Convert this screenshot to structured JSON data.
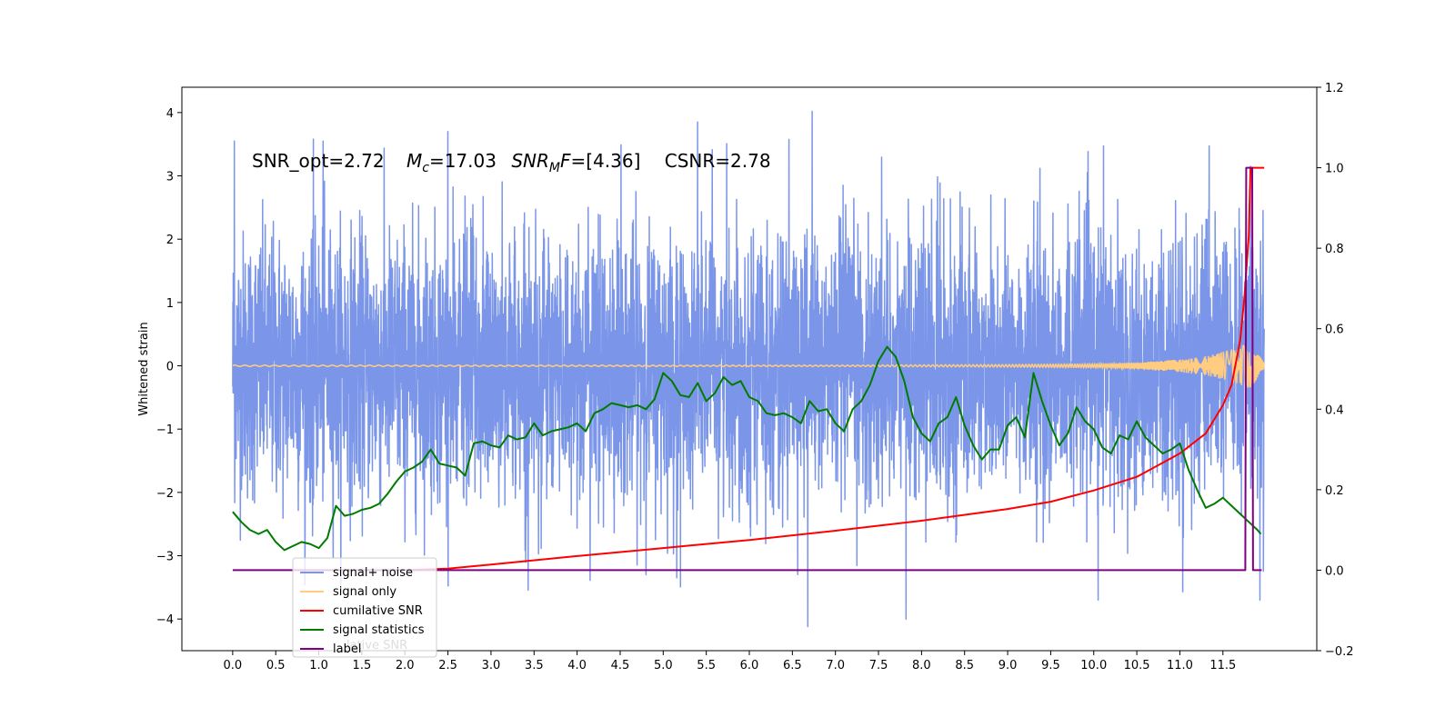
{
  "chart_data": {
    "type": "line",
    "title": "",
    "annotation": {
      "snr_opt_label": "SNR_opt=2.72",
      "mc_symbol": "M",
      "mc_sub": "c",
      "mc_value": "=17.03",
      "snr_mf_symbol": "SNR",
      "snr_mf_sub": "M",
      "snr_mf_tail": "F",
      "snr_mf_value": "=[4.36]",
      "csnr_label": "CSNR=2.78"
    },
    "xlabel": "",
    "ylabel_left": "Whitened strain",
    "ylabel_right": "",
    "x_ticks": [
      "0.0",
      "0.5",
      "1.0",
      "1.5",
      "2.0",
      "2.5",
      "3.0",
      "3.5",
      "4.0",
      "4.5",
      "5.0",
      "5.5",
      "6.0",
      "6.5",
      "7.0",
      "7.5",
      "8.0",
      "8.5",
      "9.0",
      "9.5",
      "10.0",
      "10.5",
      "11.0",
      "11.5"
    ],
    "y_left_ticks": [
      "4",
      "3",
      "2",
      "1",
      "0",
      "−1",
      "−2",
      "−3",
      "−4"
    ],
    "y_right_ticks": [
      "1.2",
      "1.0",
      "0.8",
      "0.6",
      "0.4",
      "0.2",
      "0.0",
      "−0.2"
    ],
    "xlim": [
      -0.59,
      12.59
    ],
    "ylim_left": [
      -4.5,
      4.4
    ],
    "ylim_right": [
      -0.2,
      1.2
    ],
    "grid": false,
    "legend_placement": "lower-left",
    "legend": [
      {
        "label": "signal+ noise",
        "color": "#7b96e8"
      },
      {
        "label": "signal only",
        "color": "#ffcc80"
      },
      {
        "label": "cumilative SNR",
        "color": "#ff0000"
      },
      {
        "label": "signal statistics",
        "color": "#007a00"
      },
      {
        "label": "label",
        "color": "#800080"
      }
    ],
    "legend_ghost_text": "lative SNR",
    "series": [
      {
        "name": "signal+ noise",
        "axis": "left",
        "color": "#7b96e8",
        "description": "whitened noisy strain, dense noise approx within [-3.5, 3.5], peaks up to ~4.0 at x=6.75 and ~-4.1 at x=6.7",
        "x_range": [
          0.0,
          11.98
        ],
        "y_envelope": [
          -3.6,
          3.6
        ],
        "notable_peaks": [
          [
            0.02,
            3.55
          ],
          [
            1.05,
            3.55
          ],
          [
            2.5,
            3.7
          ],
          [
            5.4,
            3.85
          ],
          [
            6.73,
            4.02
          ],
          [
            6.68,
            -4.12
          ],
          [
            7.82,
            -4.0
          ],
          [
            10.05,
            -3.7
          ],
          [
            11.93,
            -3.7
          ],
          [
            11.82,
            3.15
          ]
        ]
      },
      {
        "name": "signal only",
        "axis": "left",
        "color": "#ffcc80",
        "description": "chirp signal, near zero, growing amplitude after ~10.5, reaching ~±0.3 near 11.8",
        "x": [
          0.0,
          7.0,
          9.0,
          10.0,
          10.5,
          11.0,
          11.3,
          11.5,
          11.7,
          11.8,
          11.85,
          11.98
        ],
        "amplitude": [
          0.01,
          0.01,
          0.02,
          0.03,
          0.05,
          0.1,
          0.15,
          0.22,
          0.3,
          0.35,
          0.3,
          0.05
        ]
      },
      {
        "name": "cumilative SNR",
        "axis": "right",
        "color": "#ff0000",
        "x": [
          2.0,
          2.5,
          3.0,
          4.0,
          5.0,
          6.0,
          7.0,
          8.0,
          9.0,
          9.5,
          10.0,
          10.5,
          11.0,
          11.3,
          11.5,
          11.6,
          11.7,
          11.75,
          11.8,
          11.82,
          11.98
        ],
        "y": [
          0.0,
          0.004,
          0.014,
          0.035,
          0.055,
          0.075,
          0.098,
          0.123,
          0.152,
          0.17,
          0.198,
          0.232,
          0.29,
          0.34,
          0.41,
          0.46,
          0.57,
          0.68,
          0.83,
          1.0,
          1.0
        ]
      },
      {
        "name": "signal statistics",
        "axis": "right",
        "color": "#007a00",
        "x": [
          0.0,
          0.1,
          0.2,
          0.3,
          0.4,
          0.5,
          0.6,
          0.7,
          0.8,
          0.9,
          1.0,
          1.1,
          1.2,
          1.3,
          1.4,
          1.5,
          1.6,
          1.7,
          1.8,
          1.9,
          2.0,
          2.1,
          2.2,
          2.3,
          2.4,
          2.5,
          2.6,
          2.7,
          2.8,
          2.9,
          3.0,
          3.1,
          3.2,
          3.3,
          3.4,
          3.5,
          3.6,
          3.7,
          3.8,
          3.9,
          4.0,
          4.1,
          4.2,
          4.3,
          4.4,
          4.5,
          4.6,
          4.7,
          4.8,
          4.9,
          5.0,
          5.1,
          5.2,
          5.3,
          5.4,
          5.5,
          5.6,
          5.7,
          5.8,
          5.9,
          6.0,
          6.1,
          6.2,
          6.3,
          6.4,
          6.5,
          6.6,
          6.7,
          6.8,
          6.9,
          7.0,
          7.1,
          7.2,
          7.3,
          7.4,
          7.5,
          7.6,
          7.7,
          7.8,
          7.9,
          8.0,
          8.1,
          8.2,
          8.3,
          8.4,
          8.5,
          8.6,
          8.7,
          8.8,
          8.9,
          9.0,
          9.1,
          9.2,
          9.3,
          9.4,
          9.5,
          9.6,
          9.7,
          9.8,
          9.9,
          10.0,
          10.1,
          10.2,
          10.3,
          10.4,
          10.5,
          10.6,
          10.7,
          10.8,
          10.9,
          11.0,
          11.1,
          11.2,
          11.3,
          11.4,
          11.5,
          11.6,
          11.7,
          11.8,
          11.9,
          11.94
        ],
        "y": [
          0.145,
          0.12,
          0.1,
          0.09,
          0.1,
          0.07,
          0.05,
          0.06,
          0.07,
          0.065,
          0.055,
          0.08,
          0.16,
          0.135,
          0.14,
          0.15,
          0.155,
          0.165,
          0.19,
          0.22,
          0.245,
          0.255,
          0.27,
          0.3,
          0.265,
          0.26,
          0.255,
          0.235,
          0.315,
          0.32,
          0.31,
          0.305,
          0.335,
          0.325,
          0.33,
          0.365,
          0.335,
          0.345,
          0.35,
          0.355,
          0.365,
          0.345,
          0.39,
          0.4,
          0.415,
          0.41,
          0.405,
          0.41,
          0.4,
          0.425,
          0.49,
          0.47,
          0.435,
          0.43,
          0.465,
          0.42,
          0.44,
          0.48,
          0.46,
          0.47,
          0.43,
          0.42,
          0.39,
          0.385,
          0.39,
          0.38,
          0.365,
          0.42,
          0.395,
          0.4,
          0.365,
          0.345,
          0.4,
          0.42,
          0.46,
          0.52,
          0.555,
          0.53,
          0.47,
          0.38,
          0.34,
          0.32,
          0.365,
          0.38,
          0.43,
          0.36,
          0.31,
          0.275,
          0.3,
          0.3,
          0.36,
          0.38,
          0.33,
          0.49,
          0.42,
          0.36,
          0.31,
          0.34,
          0.405,
          0.37,
          0.35,
          0.305,
          0.29,
          0.335,
          0.325,
          0.37,
          0.33,
          0.31,
          0.29,
          0.3,
          0.315,
          0.25,
          0.2,
          0.155,
          0.165,
          0.18,
          0.16,
          0.14,
          0.12,
          0.1,
          0.09
        ]
      },
      {
        "name": "label",
        "axis": "right",
        "color": "#800080",
        "x": [
          0.0,
          11.76,
          11.77,
          11.84,
          11.85,
          11.95
        ],
        "y": [
          0.0,
          0.0,
          1.0,
          1.0,
          0.0,
          0.0
        ]
      }
    ]
  }
}
